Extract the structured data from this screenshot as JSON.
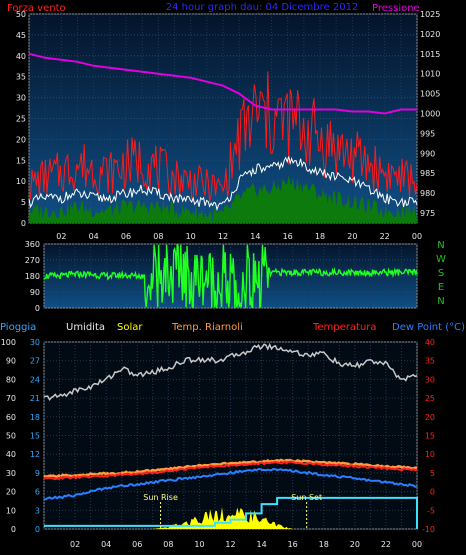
{
  "header": {
    "left": "Forza vento",
    "center": "24 hour graph dau: 04 Dicembre 2012",
    "right": "Pressione"
  },
  "colors": {
    "wind_label": "#ff2020",
    "title": "#2a2aff",
    "pressure": "#e000e0",
    "axis_text": "#e8e8e8",
    "plot_bg": "#0a3a6a",
    "gust": "#ff1a1a",
    "speed_bg": "#0d7a0d",
    "speed_avg": "#ffffff",
    "direction": "#20ff20",
    "compass": "#20c020",
    "pioggia": "#2fa8ff",
    "umidita": "#e8e8e8",
    "solar": "#ffff00",
    "temp_riarnoli": "#ff9a40",
    "temperatura": "#ff2020",
    "dew_point": "#2a7fff",
    "rain": "#40e0ff",
    "humidity_line": "#c8c8c8",
    "sun_marker": "#ffff80"
  },
  "hours": [
    "02",
    "04",
    "06",
    "08",
    "10",
    "12",
    "14",
    "16",
    "18",
    "20",
    "22",
    "00"
  ],
  "compass": [
    "N",
    "W",
    "S",
    "E",
    "N"
  ],
  "chart_data": [
    {
      "type": "line",
      "title": "24 hour graph dau: 04 Dicembre 2012",
      "x": [
        0,
        1,
        2,
        3,
        4,
        5,
        6,
        7,
        8,
        9,
        10,
        11,
        12,
        13,
        14,
        15,
        16,
        17,
        18,
        19,
        20,
        21,
        22,
        23,
        24
      ],
      "y_left_label": "Forza vento",
      "y_left_ticks": [
        0,
        5,
        10,
        15,
        20,
        25,
        30,
        35,
        40,
        45,
        50
      ],
      "y_left_lim": [
        0,
        50
      ],
      "y_right_label": "Pressione",
      "y_right_ticks": [
        975,
        980,
        985,
        990,
        995,
        1000,
        1005,
        1010,
        1015,
        1020,
        1025
      ],
      "y_right_lim": [
        972.5,
        1025
      ],
      "series": [
        {
          "name": "Pressione",
          "axis": "right",
          "values": [
            1015,
            1014,
            1013.5,
            1013,
            1012,
            1011.5,
            1011,
            1010.5,
            1010,
            1009.5,
            1009,
            1008,
            1007,
            1005,
            1002,
            1001,
            1001,
            1001,
            1001,
            1001,
            1000.5,
            1000.5,
            1000,
            1001,
            1001
          ]
        },
        {
          "axis": "left",
          "values": [
            9,
            11,
            12,
            14,
            13,
            12,
            14,
            15,
            13,
            11,
            10,
            9,
            8,
            20,
            26,
            25,
            24,
            23,
            20,
            18,
            16,
            14,
            12,
            11,
            10
          ]
        },
        {
          "axis": "left",
          "values": [
            5,
            6,
            6,
            7,
            6,
            6,
            7,
            8,
            7,
            6,
            5,
            5,
            4,
            10,
            13,
            13,
            15,
            14,
            12,
            11,
            10,
            8,
            6,
            5,
            5
          ]
        },
        {
          "axis": "left",
          "values": [
            3,
            3,
            3,
            4,
            3,
            3,
            4,
            4,
            4,
            3,
            3,
            2,
            2,
            6,
            8,
            8,
            10,
            9,
            7,
            6,
            5,
            4,
            3,
            3,
            3
          ]
        }
      ]
    },
    {
      "type": "line",
      "y_ticks": [
        0,
        90,
        180,
        270,
        360
      ],
      "y_lim": [
        0,
        360
      ],
      "x": [
        0,
        1,
        2,
        3,
        4,
        5,
        6,
        7,
        8,
        9,
        10,
        11,
        12,
        13,
        14,
        15,
        16,
        17,
        18,
        19,
        20,
        21,
        22,
        23,
        24
      ],
      "series": [
        {
          "values": [
            180,
            180,
            190,
            190,
            180,
            185,
            180,
            180,
            190,
            195,
            180,
            170,
            140,
            120,
            190,
            200,
            200,
            200,
            200,
            200,
            200,
            200,
            200,
            200,
            200
          ]
        }
      ]
    },
    {
      "type": "line",
      "x": [
        0,
        1,
        2,
        3,
        4,
        5,
        6,
        7,
        8,
        9,
        10,
        11,
        12,
        13,
        14,
        15,
        16,
        17,
        18,
        19,
        20,
        21,
        22,
        23,
        24
      ],
      "y_left_ticks": [
        0,
        10,
        20,
        30,
        40,
        50,
        60,
        70,
        80,
        90,
        100
      ],
      "y_left_lim": [
        0,
        100
      ],
      "y_inner_ticks": [
        0,
        3,
        6,
        9,
        12,
        15,
        18,
        21,
        24,
        27,
        30
      ],
      "y_inner_lim": [
        0,
        30
      ],
      "y_right_label": "Temperatura",
      "y_right_ticks": [
        -10,
        -5,
        0,
        5,
        10,
        15,
        20,
        25,
        30,
        35,
        40
      ],
      "y_right_lim": [
        -10,
        40
      ],
      "legend": [
        "Pioggia",
        "Umidita",
        "Solar",
        "Temp. Riarnoli",
        "Temperatura",
        "Dew Point (°C)"
      ],
      "annotations": [
        "Sun Rise",
        "Sun Set"
      ],
      "series": [
        {
          "name": "Umidita",
          "axis": "left",
          "values": [
            70,
            71,
            74,
            76,
            80,
            86,
            82,
            84,
            86,
            90,
            91,
            90,
            92,
            95,
            98,
            97,
            95,
            93,
            94,
            88,
            87,
            90,
            88,
            80,
            82
          ]
        },
        {
          "name": "Temperatura",
          "axis": "right",
          "values": [
            3.5,
            3.6,
            3.8,
            4.0,
            4.2,
            4.5,
            4.8,
            5.0,
            5.5,
            6.0,
            6.5,
            6.8,
            7.0,
            7.2,
            7.5,
            7.8,
            7.8,
            7.5,
            7.2,
            7.0,
            6.8,
            6.5,
            6.2,
            6.0,
            5.8
          ]
        },
        {
          "name": "Temp. Riarnoli",
          "axis": "right",
          "values": [
            4.0,
            4.2,
            4.4,
            4.6,
            4.8,
            5.0,
            5.3,
            5.6,
            6.0,
            6.5,
            7.0,
            7.3,
            7.5,
            7.8,
            8.0,
            8.3,
            8.3,
            8.0,
            7.7,
            7.5,
            7.3,
            7.0,
            6.7,
            6.5,
            6.4
          ]
        },
        {
          "name": "Dew Point (°C)",
          "axis": "right",
          "values": [
            -2.0,
            -1.5,
            -1.0,
            0.0,
            1.0,
            1.5,
            2.0,
            2.5,
            3.0,
            3.5,
            4.0,
            4.5,
            5.0,
            5.5,
            6.0,
            5.8,
            5.5,
            5.0,
            4.5,
            4.0,
            3.5,
            3.0,
            2.5,
            2.0,
            1.5
          ]
        },
        {
          "name": "Pioggia",
          "axis": "inner",
          "values": [
            0.5,
            0.5,
            0.5,
            0.5,
            0.5,
            0.5,
            0.5,
            0.5,
            0.5,
            0.5,
            0.5,
            1.0,
            1.5,
            2.5,
            4.0,
            5.0,
            5.0,
            5.0,
            5.0,
            5.0,
            5.0,
            5.0,
            5.0,
            5.0,
            0
          ]
        },
        {
          "name": "Solar",
          "axis": "left",
          "values": [
            0,
            0,
            0,
            0,
            0,
            0,
            0,
            0,
            1,
            3,
            6,
            9,
            7,
            8,
            5,
            2,
            0,
            0,
            0,
            0,
            0,
            0,
            0,
            0,
            0
          ]
        }
      ]
    }
  ]
}
